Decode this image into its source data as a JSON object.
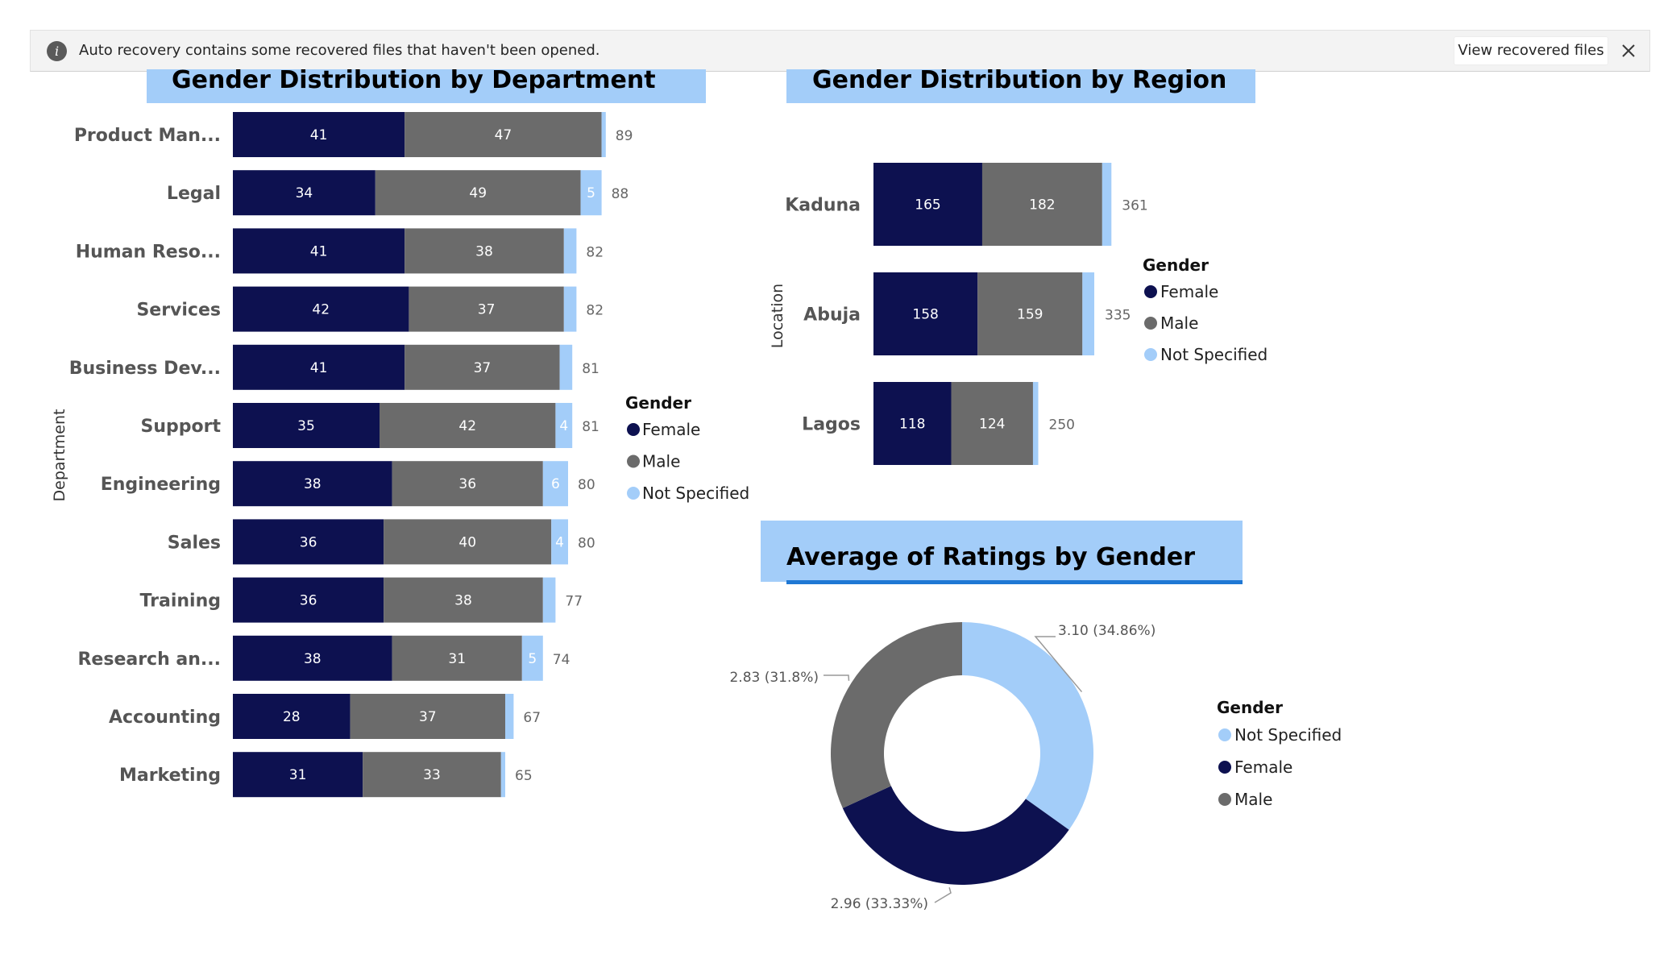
{
  "notification": {
    "message": "Auto recovery contains some recovered files that haven't been opened.",
    "info_icon": "i",
    "button_label": "View recovered files",
    "close_icon": "close-icon"
  },
  "colors": {
    "female": "#0d1150",
    "male": "#6b6b6b",
    "not_specified": "#a3cdf9",
    "title_bg": "#a3cdf9",
    "underline": "#1f78d4"
  },
  "charts": {
    "department": {
      "title": "Gender Distribution by Department",
      "axis_label": "Department",
      "legend_title": "Gender",
      "legend": [
        "Female",
        "Male",
        "Not Specified"
      ]
    },
    "region": {
      "title": "Gender Distribution by Region",
      "axis_label": "Location",
      "legend_title": "Gender",
      "legend": [
        "Female",
        "Male",
        "Not Specified"
      ]
    },
    "ratings": {
      "title": "Average of Ratings by Gender",
      "legend_title": "Gender",
      "legend": [
        "Not Specified",
        "Female",
        "Male"
      ]
    }
  },
  "chart_data": [
    {
      "type": "bar",
      "orientation": "horizontal",
      "stacked": true,
      "title": "Gender Distribution by Department",
      "ylabel": "Department",
      "categories": [
        "Product Man...",
        "Legal",
        "Human Reso...",
        "Services",
        "Business Dev...",
        "Support",
        "Engineering",
        "Sales",
        "Training",
        "Research an...",
        "Accounting",
        "Marketing"
      ],
      "series": [
        {
          "name": "Female",
          "values": [
            41,
            34,
            41,
            42,
            41,
            35,
            38,
            36,
            36,
            38,
            28,
            31
          ]
        },
        {
          "name": "Male",
          "values": [
            47,
            49,
            38,
            37,
            37,
            42,
            36,
            40,
            38,
            31,
            37,
            33
          ]
        },
        {
          "name": "Not Specified",
          "values": [
            1,
            5,
            3,
            3,
            3,
            4,
            6,
            4,
            3,
            5,
            2,
            1
          ]
        }
      ],
      "not_specified_labels_shown": [
        false,
        true,
        false,
        false,
        false,
        true,
        true,
        true,
        false,
        true,
        false,
        false
      ],
      "totals": [
        89,
        88,
        82,
        82,
        81,
        81,
        80,
        80,
        77,
        74,
        67,
        65
      ],
      "legend_title": "Gender",
      "legend_position": "right"
    },
    {
      "type": "bar",
      "orientation": "horizontal",
      "stacked": true,
      "title": "Gender Distribution by Region",
      "ylabel": "Location",
      "categories": [
        "Kaduna",
        "Abuja",
        "Lagos"
      ],
      "series": [
        {
          "name": "Female",
          "values": [
            165,
            158,
            118
          ]
        },
        {
          "name": "Male",
          "values": [
            182,
            159,
            124
          ]
        },
        {
          "name": "Not Specified",
          "values": [
            14,
            18,
            8
          ]
        }
      ],
      "totals": [
        361,
        335,
        250
      ],
      "legend_title": "Gender",
      "legend_position": "right"
    },
    {
      "type": "pie",
      "donut": true,
      "title": "Average of Ratings by Gender",
      "categories": [
        "Not Specified",
        "Female",
        "Male"
      ],
      "values": [
        3.1,
        2.96,
        2.83
      ],
      "data_labels": [
        "3.10 (34.86%)",
        "2.96 (33.33%)",
        "2.83 (31.8%)"
      ],
      "legend_title": "Gender",
      "legend_position": "right"
    }
  ]
}
